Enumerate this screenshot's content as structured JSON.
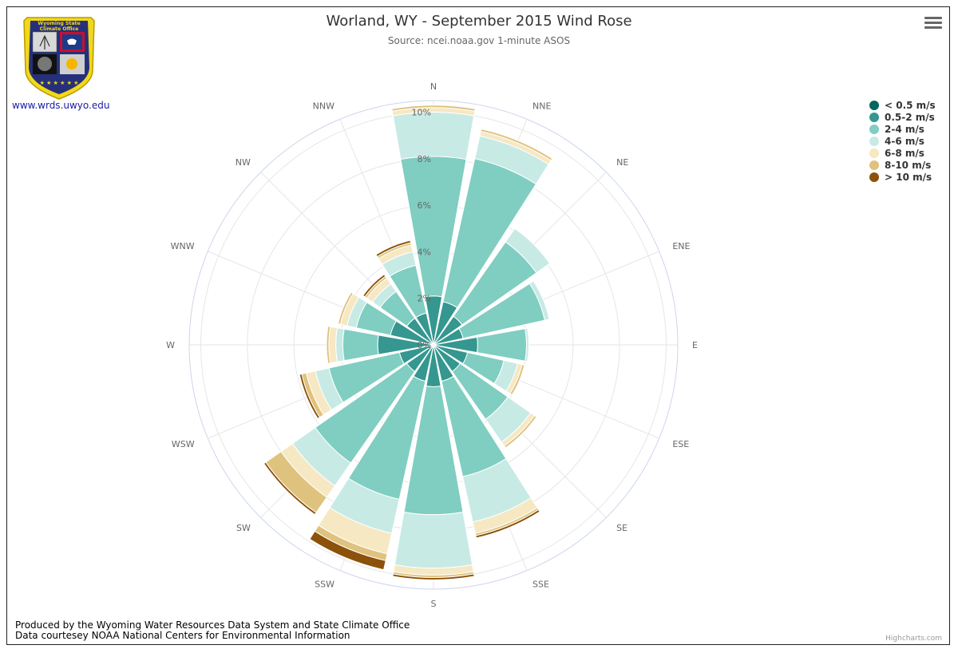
{
  "header": {
    "title": "Worland, WY - September 2015 Wind Rose",
    "subtitle": "Source: ncei.noaa.gov 1-minute ASOS"
  },
  "logo": {
    "banner_line1": "Wyoming State",
    "banner_line2": "Climate Office",
    "url": "www.wrds.uwyo.edu",
    "stars": "★ ★ ★ ★ ★ ★"
  },
  "menu": {
    "icon": "hamburger-menu-icon"
  },
  "footer": {
    "line1": "Produced by the Wyoming Water Resources Data System and State Climate Office",
    "line2": "Data courtesey NOAA National Centers for Environmental Information"
  },
  "credits": "Highcharts.com",
  "chart_data": {
    "type": "windrose",
    "stacking": "normal",
    "categories": [
      "N",
      "NNE",
      "NE",
      "ENE",
      "E",
      "ESE",
      "SE",
      "SSE",
      "S",
      "SSW",
      "SW",
      "WSW",
      "W",
      "WNW",
      "NW",
      "NNW"
    ],
    "yaxis_ticks": [
      "0%",
      "2%",
      "4%",
      "6%",
      "8%",
      "10%"
    ],
    "ylim": [
      0,
      10.5
    ],
    "grid": true,
    "legend_position": "top-right",
    "series": [
      {
        "name": "< 0.5 m/s",
        "color": "#01665e",
        "values": [
          0,
          0,
          0,
          0,
          0,
          0,
          0,
          0,
          0,
          0,
          0,
          0,
          0,
          0,
          0,
          0
        ]
      },
      {
        "name": "0.5-2 m/s",
        "color": "#35978f",
        "values": [
          2.1,
          1.9,
          1.5,
          1.3,
          1.9,
          1.5,
          1.4,
          1.6,
          1.8,
          1.6,
          1.4,
          1.5,
          2.4,
          1.9,
          1.4,
          1.4
        ]
      },
      {
        "name": "2-4 m/s",
        "color": "#80cdc1",
        "values": [
          6.0,
          6.3,
          3.9,
          3.6,
          2.1,
          1.6,
          2.5,
          4.2,
          5.5,
          5.2,
          4.8,
          3.1,
          1.5,
          1.5,
          1.4,
          2.1
        ]
      },
      {
        "name": "4-6 m/s",
        "color": "#c7eae5",
        "values": [
          1.9,
          1.0,
          0.7,
          0.2,
          0.1,
          0.6,
          1.2,
          2.0,
          2.3,
          1.5,
          1.2,
          0.6,
          0.3,
          0.4,
          0.4,
          0.6
        ]
      },
      {
        "name": "6-8 m/s",
        "color": "#f6e8c3",
        "values": [
          0.2,
          0.2,
          0,
          0,
          0,
          0.2,
          0.2,
          0.5,
          0.3,
          0.9,
          0.6,
          0.4,
          0.3,
          0.3,
          0.3,
          0.3
        ]
      },
      {
        "name": "8-10 m/s",
        "color": "#dfc27d",
        "values": [
          0.1,
          0.1,
          0,
          0,
          0,
          0.1,
          0.1,
          0.1,
          0.1,
          0.3,
          0.8,
          0.2,
          0.1,
          0.1,
          0.1,
          0.1
        ]
      },
      {
        "name": "> 10 m/s",
        "color": "#8c510a",
        "values": [
          0,
          0,
          0,
          0,
          0,
          0,
          0,
          0.1,
          0.1,
          0.4,
          0.1,
          0.1,
          0,
          0,
          0.1,
          0.1
        ]
      }
    ]
  }
}
